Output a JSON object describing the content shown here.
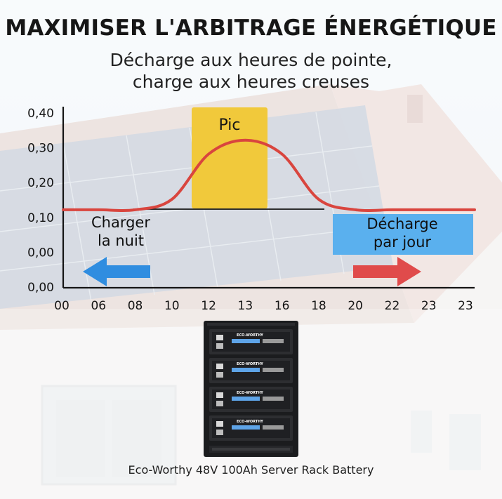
{
  "title": "MAXIMISER L'ARBITRAGE ÉNERGÉTIQUE",
  "subtitle": [
    "Décharge aux heures de pointe,",
    "charge aux heures creuses"
  ],
  "chart_data": {
    "type": "line",
    "x_tick_labels": [
      "00",
      "06",
      "08",
      "10",
      "12",
      "13",
      "16",
      "18",
      "20",
      "22",
      "23",
      "23"
    ],
    "y_tick_labels": [
      "0,00",
      "0,00",
      "0,10",
      "0,20",
      "0,30",
      "0,40"
    ],
    "series": [
      {
        "color": "#d9453e",
        "values": [
          0.12,
          0.12,
          0.12,
          0.15,
          0.28,
          0.32,
          0.28,
          0.15,
          0.12,
          0.12,
          0.12,
          0.12
        ]
      }
    ],
    "peak_label": "Pic",
    "peak_color": "#f1c93b",
    "annotations": {
      "charge": [
        "Charger",
        "la nuit"
      ],
      "discharge": [
        "Décharge",
        "par jour"
      ]
    },
    "discharge_box_color": "#5ab0ee",
    "arrows": {
      "left_color": "#2f8de0",
      "right_color": "#e04b4b"
    }
  },
  "product": {
    "brand": "ECO-WORTHY",
    "caption": "Eco-Worthy 48V 100Ah Server Rack Battery"
  }
}
